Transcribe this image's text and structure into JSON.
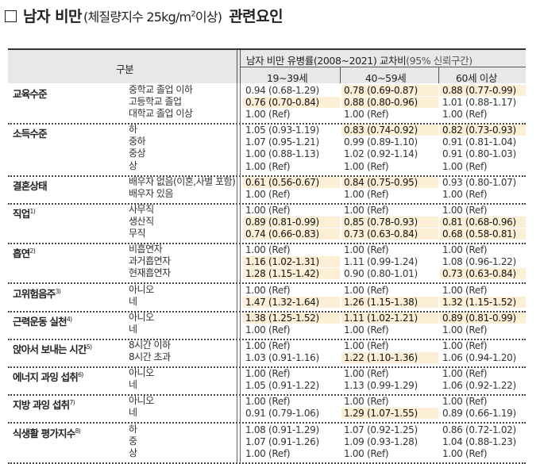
{
  "title": {
    "main": "남자 비만",
    "paren_pre": "(체질량지수 25kg/m",
    "paren_sup": "2",
    "paren_post": "이상)",
    "rel": "관련요인"
  },
  "header": {
    "category": "구분",
    "measure": "남자 비만 유병률(2008~2021) 교차비",
    "ci": "(95% 신뢰구간)",
    "age_groups": [
      "19~39세",
      "40~59세",
      "60세 이상"
    ]
  },
  "groups": [
    {
      "name": "교육수준",
      "sup": "",
      "rows": [
        {
          "sub": "중학교 졸업 이하",
          "v": [
            "0.94 (0.68-1.29)",
            "0.78 (0.69-0.87)",
            "0.88 (0.77-0.99)"
          ],
          "sig": [
            false,
            true,
            true
          ]
        },
        {
          "sub": "고등학교 졸업",
          "v": [
            "0.76 (0.70-0.84)",
            "0.88 (0.80-0.96)",
            "1.01 (0.88-1.17)"
          ],
          "sig": [
            true,
            true,
            false
          ]
        },
        {
          "sub": "대학교 졸업 이상",
          "v": [
            "1.00 (Ref)",
            "1.00 (Ref)",
            "1.00 (Ref)"
          ],
          "sig": [
            false,
            false,
            false
          ]
        }
      ]
    },
    {
      "name": "소득수준",
      "sup": "",
      "rows": [
        {
          "sub": "하",
          "v": [
            "1.05 (0.93-1.19)",
            "0.83 (0.74-0.92)",
            "0.82 (0.73-0.93)"
          ],
          "sig": [
            false,
            true,
            true
          ]
        },
        {
          "sub": "중하",
          "v": [
            "1.07 (0.95-1.21)",
            "0.99 (0.89-1.10)",
            "0.91 (0.81-1.04)"
          ],
          "sig": [
            false,
            false,
            false
          ]
        },
        {
          "sub": "중상",
          "v": [
            "1.00 (0.88-1.13)",
            "1.02 (0.92-1.14)",
            "0.91 (0.80-1.03)"
          ],
          "sig": [
            false,
            false,
            false
          ]
        },
        {
          "sub": "상",
          "v": [
            "1.00 (Ref)",
            "1.00 (Ref)",
            "1.00 (Ref)"
          ],
          "sig": [
            false,
            false,
            false
          ]
        }
      ]
    },
    {
      "name": "결혼상태",
      "sup": "",
      "rows": [
        {
          "sub": "배우자 없음(이혼,사별 포함)",
          "v": [
            "0.61 (0.56-0.67)",
            "0.84 (0.75-0.95)",
            "0.93 (0.80-1.07)"
          ],
          "sig": [
            true,
            true,
            false
          ]
        },
        {
          "sub": "배우자 있음",
          "v": [
            "1.00 (Ref)",
            "1.00 (Ref)",
            "1.00 (Ref)"
          ],
          "sig": [
            false,
            false,
            false
          ]
        }
      ]
    },
    {
      "name": "직업",
      "sup": "1)",
      "rows": [
        {
          "sub": "사무직",
          "v": [
            "1.00 (Ref)",
            "1.00 (Ref)",
            "1.00 (Ref)"
          ],
          "sig": [
            false,
            false,
            false
          ]
        },
        {
          "sub": "생산직",
          "v": [
            "0.89 (0.81-0.99)",
            "0.85 (0.78-0.93)",
            "0.81 (0.68-0.96)"
          ],
          "sig": [
            true,
            true,
            true
          ]
        },
        {
          "sub": "무직",
          "v": [
            "0.74 (0.66-0.83)",
            "0.73 (0.63-0.84)",
            "0.68 (0.58-0.81)"
          ],
          "sig": [
            true,
            true,
            true
          ]
        }
      ]
    },
    {
      "name": "흡연",
      "sup": "2)",
      "rows": [
        {
          "sub": "비흡연자",
          "v": [
            "1.00 (Ref)",
            "1.00 (Ref)",
            "1.00 (Ref)"
          ],
          "sig": [
            false,
            false,
            false
          ]
        },
        {
          "sub": "과거흡연자",
          "v": [
            "1.16 (1.02-1.31)",
            "1.11 (0.99-1.24)",
            "1.08 (0.96-1.22)"
          ],
          "sig": [
            true,
            false,
            false
          ]
        },
        {
          "sub": "현재흡연자",
          "v": [
            "1.28 (1.15-1.42)",
            "0.90 (0.80-1.01)",
            "0.73 (0.63-0.84)"
          ],
          "sig": [
            true,
            false,
            true
          ]
        }
      ]
    },
    {
      "name": "고위험음주",
      "sup": "3)",
      "rows": [
        {
          "sub": "아니오",
          "v": [
            "1.00 (Ref)",
            "1.00 (Ref)",
            "1.00 (Ref)"
          ],
          "sig": [
            false,
            false,
            false
          ]
        },
        {
          "sub": "네",
          "v": [
            "1.47 (1.32-1.64)",
            "1.26 (1.15-1.38)",
            "1.32 (1.15-1.52)"
          ],
          "sig": [
            true,
            true,
            true
          ]
        }
      ]
    },
    {
      "name": "근력운동 실천",
      "sup": "4)",
      "rows": [
        {
          "sub": "아니오",
          "v": [
            "1.38 (1.25-1.52)",
            "1.11 (1.02-1.21)",
            "0.89 (0.81-0.99)"
          ],
          "sig": [
            true,
            true,
            true
          ]
        },
        {
          "sub": "네",
          "v": [
            "1.00 (Ref)",
            "1.00 (Ref)",
            "1.00 (Ref)"
          ],
          "sig": [
            false,
            false,
            false
          ]
        }
      ]
    },
    {
      "name": "앉아서 보내는 시간",
      "sup": "5)",
      "rows": [
        {
          "sub": "8시간 이하",
          "v": [
            "1.00 (Ref)",
            "1.00 (Ref)",
            "1.00 (Ref)"
          ],
          "sig": [
            false,
            false,
            false
          ]
        },
        {
          "sub": "8시간 초과",
          "v": [
            "1.03 (0.91-1.16)",
            "1.22 (1.10-1.36)",
            "1.06 (0.94-1.20)"
          ],
          "sig": [
            false,
            true,
            false
          ]
        }
      ]
    },
    {
      "name": "에너지 과잉 섭취",
      "sup": "6)",
      "rows": [
        {
          "sub": "아니오",
          "v": [
            "1.00 (Ref)",
            "1.00 (Ref)",
            "1.00 (Ref)"
          ],
          "sig": [
            false,
            false,
            false
          ]
        },
        {
          "sub": "네",
          "v": [
            "1.05 (0.91-1.22)",
            "1.13 (0.99-1.29)",
            "1.06 (0.92-1.22)"
          ],
          "sig": [
            false,
            false,
            false
          ]
        }
      ]
    },
    {
      "name": "지방 과잉 섭취",
      "sup": "7)",
      "rows": [
        {
          "sub": "아니오",
          "v": [
            "1.00 (Ref)",
            "1.00 (Ref)",
            "1.00 (Ref)"
          ],
          "sig": [
            false,
            false,
            false
          ]
        },
        {
          "sub": "네",
          "v": [
            "0.91 (0.79-1.06)",
            "1.29 (1.07-1.55)",
            "0.89 (0.66-1.19)"
          ],
          "sig": [
            false,
            true,
            false
          ]
        }
      ]
    },
    {
      "name": "식생활 평가지수",
      "sup": "8)",
      "rows": [
        {
          "sub": "하",
          "v": [
            "1.08 (0.91-1.29)",
            "1.07 (0.92-1.25)",
            "0.86 (0.72-1.02)"
          ],
          "sig": [
            false,
            false,
            false
          ]
        },
        {
          "sub": "중",
          "v": [
            "1.07 (0.91-1.26)",
            "1.09 (0.93-1.28)",
            "1.04 (0.88-1.23)"
          ],
          "sig": [
            false,
            false,
            false
          ]
        },
        {
          "sub": "상",
          "v": [
            "1.00 (Ref)",
            "1.00 (Ref)",
            "1.00 (Ref)"
          ],
          "sig": [
            false,
            false,
            false
          ]
        }
      ]
    }
  ]
}
